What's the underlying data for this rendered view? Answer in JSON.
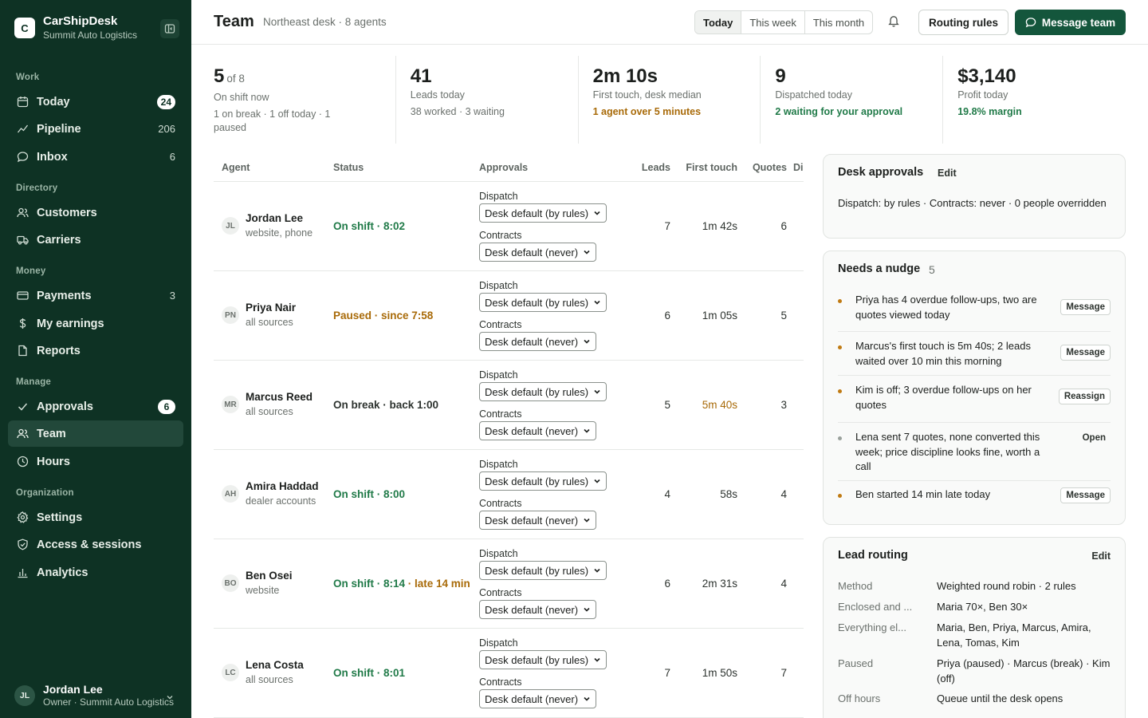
{
  "brand": {
    "logo_letter": "C",
    "name": "CarShipDesk",
    "org": "Summit Auto Logistics"
  },
  "nav": {
    "sections": [
      {
        "label": "Work",
        "items": [
          {
            "label": "Today",
            "icon": "calendar-icon",
            "badge": "24"
          },
          {
            "label": "Pipeline",
            "icon": "pipeline-icon",
            "count": "206"
          },
          {
            "label": "Inbox",
            "icon": "chat-icon",
            "count": "6"
          }
        ]
      },
      {
        "label": "Directory",
        "items": [
          {
            "label": "Customers",
            "icon": "users-icon"
          },
          {
            "label": "Carriers",
            "icon": "truck-icon"
          }
        ]
      },
      {
        "label": "Money",
        "items": [
          {
            "label": "Payments",
            "icon": "card-icon",
            "count": "3"
          },
          {
            "label": "My earnings",
            "icon": "dollar-icon"
          },
          {
            "label": "Reports",
            "icon": "document-icon"
          }
        ]
      },
      {
        "label": "Manage",
        "items": [
          {
            "label": "Approvals",
            "icon": "check-icon",
            "badge": "6"
          },
          {
            "label": "Team",
            "icon": "users-icon",
            "active": true
          },
          {
            "label": "Hours",
            "icon": "clock-icon"
          }
        ]
      },
      {
        "label": "Organization",
        "items": [
          {
            "label": "Settings",
            "icon": "gear-icon"
          },
          {
            "label": "Access & sessions",
            "icon": "shield-icon"
          },
          {
            "label": "Analytics",
            "icon": "bar-chart-icon"
          }
        ]
      }
    ]
  },
  "user": {
    "initials": "JL",
    "name": "Jordan Lee",
    "role": "Owner · Summit Auto Logistics"
  },
  "header": {
    "title": "Team",
    "subtitle": "Northeast desk · 8 agents",
    "ranges": [
      "Today",
      "This week",
      "This month"
    ],
    "active_range": "Today",
    "routing_button": "Routing rules",
    "message_button": "Message team"
  },
  "stats": [
    {
      "value": "5",
      "of": "of 8",
      "label": "On shift now",
      "note": "1 on break · 1 off today · 1 paused",
      "note_tone": "muted"
    },
    {
      "value": "41",
      "label": "Leads today",
      "note": "38 worked · 3 waiting",
      "note_tone": "muted"
    },
    {
      "value": "2m 10s",
      "label": "First touch, desk median",
      "note": "1 agent over 5 minutes",
      "note_tone": "amber"
    },
    {
      "value": "9",
      "label": "Dispatched today",
      "note": "2 waiting for your approval",
      "note_tone": "green"
    },
    {
      "value": "$3,140",
      "label": "Profit today",
      "note": "19.8% margin",
      "note_tone": "green"
    }
  ],
  "table": {
    "columns": [
      "Agent",
      "Status",
      "Approvals",
      "Leads",
      "First touch",
      "Quotes",
      "Dispatched"
    ],
    "dispatch_label": "Dispatch",
    "contracts_label": "Contracts",
    "rows": [
      {
        "initials": "JL",
        "name": "Jordan Lee",
        "sources": "website, phone",
        "status": "On shift · 8:02",
        "status_tone": "green",
        "dispatch": "Desk default (by rules)",
        "contracts": "Desk default (never)",
        "leads": "7",
        "first_touch": "1m 42s",
        "quotes": "6"
      },
      {
        "initials": "PN",
        "name": "Priya Nair",
        "sources": "all sources",
        "status": "Paused · since 7:58",
        "status_tone": "amber",
        "dispatch": "Desk default (by rules)",
        "contracts": "Desk default (never)",
        "leads": "6",
        "first_touch": "1m 05s",
        "quotes": "5"
      },
      {
        "initials": "MR",
        "name": "Marcus Reed",
        "sources": "all sources",
        "status": "On break · back 1:00",
        "status_tone": "dark",
        "dispatch": "Desk default (by rules)",
        "contracts": "Desk default (never)",
        "leads": "5",
        "first_touch": "5m 40s",
        "first_touch_warn": true,
        "quotes": "3"
      },
      {
        "initials": "AH",
        "name": "Amira Haddad",
        "sources": "dealer accounts",
        "status": "On shift · 8:00",
        "status_tone": "green",
        "dispatch": "Desk default (by rules)",
        "contracts": "Desk default (never)",
        "leads": "4",
        "first_touch": "58s",
        "quotes": "4"
      },
      {
        "initials": "BO",
        "name": "Ben Osei",
        "sources": "website",
        "status": "On shift · 8:14",
        "status_late": "· late 14 min",
        "status_tone": "green",
        "dispatch": "Desk default (by rules)",
        "contracts": "Desk default (never)",
        "leads": "6",
        "first_touch": "2m 31s",
        "quotes": "4"
      },
      {
        "initials": "LC",
        "name": "Lena Costa",
        "sources": "all sources",
        "status": "On shift · 8:01",
        "status_tone": "green",
        "dispatch": "Desk default (by rules)",
        "contracts": "Desk default (never)",
        "leads": "7",
        "first_touch": "1m 50s",
        "quotes": "7"
      }
    ]
  },
  "desk_approvals": {
    "title": "Desk approvals",
    "edit": "Edit",
    "summary": "Dispatch: by rules · Contracts: never · 0 people overridden"
  },
  "nudges": {
    "title": "Needs a nudge",
    "count": "5",
    "items": [
      {
        "text": "Priya has 4 overdue follow-ups, two are quotes viewed today",
        "action": "Message",
        "dot": "#c07a12"
      },
      {
        "text": "Marcus's first touch is 5m 40s; 2 leads waited over 10 min this morning",
        "action": "Message",
        "dot": "#c07a12"
      },
      {
        "text": "Kim is off; 3 overdue follow-ups on her quotes",
        "action": "Reassign",
        "dot": "#c07a12"
      },
      {
        "text": "Lena sent 7 quotes, none converted this week; price discipline looks fine, worth a call",
        "action": "Open",
        "dot": "#9aa19c",
        "plain": true
      },
      {
        "text": "Ben started 14 min late today",
        "action": "Message",
        "dot": "#c07a12"
      }
    ]
  },
  "routing": {
    "title": "Lead routing",
    "edit": "Edit",
    "rows": [
      {
        "key": "Method",
        "value": "Weighted round robin · 2 rules"
      },
      {
        "key": "Enclosed and ...",
        "value": "Maria 70×, Ben 30×"
      },
      {
        "key": "Everything el...",
        "value": "Maria, Ben, Priya, Marcus, Amira, Lena, Tomas, Kim"
      },
      {
        "key": "Paused",
        "value": "Priya (paused) · Marcus (break) · Kim (off)"
      },
      {
        "key": "Off hours",
        "value": "Queue until the desk opens"
      }
    ]
  },
  "colors": {
    "sidebar": "#0e3224",
    "primary": "#14563c",
    "green": "#207a48",
    "amber": "#a86a08"
  }
}
